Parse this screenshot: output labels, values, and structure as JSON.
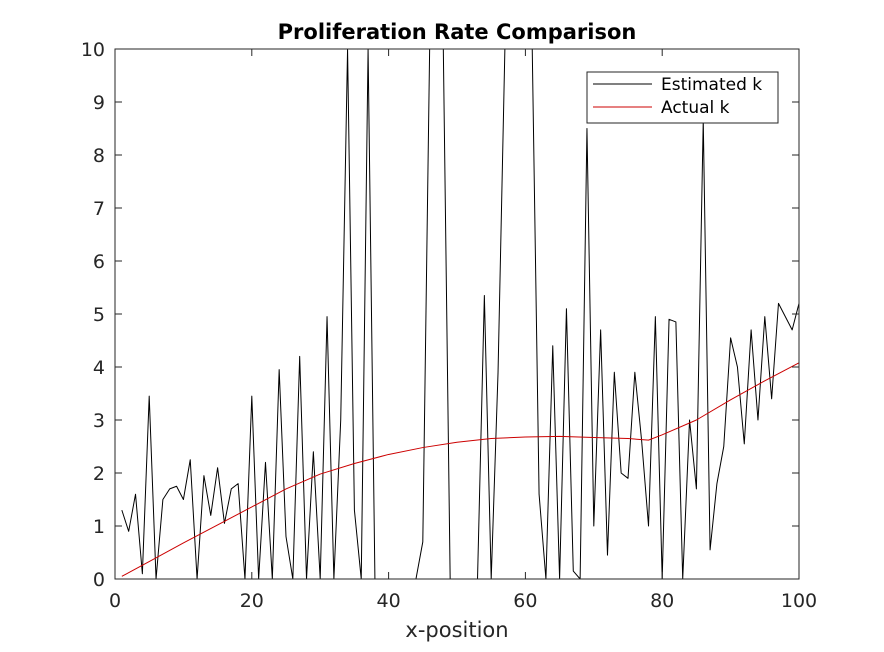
{
  "chart_data": {
    "type": "line",
    "title": "Proliferation Rate Comparison",
    "xlabel": "x-position",
    "ylabel": "",
    "xlim": [
      0,
      100
    ],
    "ylim": [
      0,
      10
    ],
    "xticks": [
      "0",
      "20",
      "40",
      "60",
      "80",
      "100"
    ],
    "yticks": [
      "0",
      "1",
      "2",
      "3",
      "4",
      "5",
      "6",
      "7",
      "8",
      "9",
      "10"
    ],
    "grid": false,
    "legend_position": "top-right",
    "series": [
      {
        "name": "Estimated k",
        "color": "#000000",
        "x": [
          1,
          2,
          3,
          4,
          5,
          6,
          7,
          8,
          9,
          10,
          11,
          12,
          13,
          14,
          15,
          16,
          17,
          18,
          19,
          20,
          21,
          22,
          23,
          24,
          25,
          26,
          27,
          28,
          29,
          30,
          31,
          32,
          33,
          34,
          35,
          36,
          37,
          38,
          39,
          40,
          41,
          42,
          43,
          44,
          45,
          46,
          47,
          48,
          49,
          50,
          51,
          52,
          53,
          54,
          55,
          56,
          57,
          58,
          59,
          60,
          61,
          62,
          63,
          64,
          65,
          66,
          67,
          68,
          69,
          70,
          71,
          72,
          73,
          74,
          75,
          76,
          77,
          78,
          79,
          80,
          81,
          82,
          83,
          84,
          85,
          86,
          87,
          88,
          89,
          90,
          91,
          92,
          93,
          94,
          95,
          96,
          97,
          98,
          99,
          100
        ],
        "y": [
          1.3,
          0.9,
          1.6,
          0.1,
          3.45,
          0.0,
          1.5,
          1.7,
          1.75,
          1.5,
          2.25,
          0.0,
          1.95,
          1.2,
          2.1,
          1.05,
          1.7,
          1.8,
          0.0,
          3.45,
          0.0,
          2.2,
          0.0,
          3.95,
          0.8,
          0.0,
          4.2,
          0.0,
          2.4,
          0.0,
          4.95,
          0.0,
          3.0,
          10,
          1.3,
          0.0,
          10,
          0.0,
          0.0,
          0.0,
          0.0,
          0.0,
          0.0,
          0.0,
          0.7,
          10,
          10,
          10,
          0.0,
          0.0,
          0.0,
          0.0,
          0.0,
          5.35,
          0.0,
          3.9,
          10,
          10,
          10,
          10,
          10,
          1.6,
          0.0,
          4.4,
          0.0,
          5.1,
          0.15,
          0.0,
          8.5,
          1.0,
          4.7,
          0.45,
          3.9,
          2.0,
          1.9,
          3.9,
          2.6,
          1.0,
          4.95,
          0.0,
          4.9,
          4.85,
          0.0,
          3.0,
          1.7,
          8.65,
          0.55,
          1.8,
          2.5,
          4.55,
          4.0,
          2.55,
          4.7,
          3.0,
          4.95,
          3.4,
          5.2,
          4.95,
          4.7,
          5.2
        ]
      },
      {
        "name": "Actual k",
        "color": "#cc0000",
        "x": [
          1,
          5,
          10,
          15,
          20,
          25,
          30,
          35,
          40,
          45,
          50,
          55,
          60,
          65,
          70,
          75,
          78,
          80,
          85,
          90,
          95,
          100
        ],
        "y": [
          0.05,
          0.33,
          0.68,
          1.02,
          1.36,
          1.7,
          1.98,
          2.18,
          2.35,
          2.48,
          2.58,
          2.65,
          2.68,
          2.69,
          2.67,
          2.65,
          2.62,
          2.72,
          3.0,
          3.38,
          3.74,
          4.08
        ]
      }
    ]
  }
}
